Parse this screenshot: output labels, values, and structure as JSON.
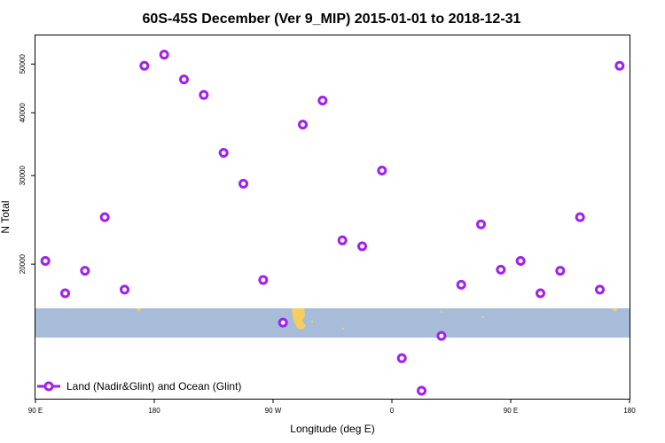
{
  "chart_data": {
    "type": "scatter",
    "title": "60S-45S December (Ver 9_MIP)   2015-01-01 to 2018-12-31",
    "xlabel": "Longitude (deg E)",
    "ylabel": "N Total",
    "x_ticks": [
      {
        "value": 90,
        "label": "90 E"
      },
      {
        "value": 180,
        "label": "180"
      },
      {
        "value": 270,
        "label": "90 W"
      },
      {
        "value": 360,
        "label": "0"
      },
      {
        "value": 450,
        "label": "90 E"
      },
      {
        "value": 540,
        "label": "180"
      }
    ],
    "y_ticks": [
      20000,
      30000,
      40000,
      50000
    ],
    "xlim": [
      90,
      540
    ],
    "y_scale": "log",
    "ylim": [
      10800,
      57000
    ],
    "legend": {
      "position": "bottom-left",
      "label": "Land (Nadir&Glint) and Ocean (Glint)"
    },
    "series": [
      {
        "name": "Land (Nadir&Glint) and Ocean (Glint)",
        "color": "#a020f0",
        "x": [
          97.5,
          112.5,
          127.5,
          142.5,
          157.5,
          172.5,
          187.5,
          202.5,
          217.5,
          232.5,
          247.5,
          262.5,
          277.5,
          292.5,
          307.5,
          322.5,
          337.5,
          352.5,
          367.5,
          382.5,
          397.5,
          412.5,
          427.5,
          442.5,
          457.5,
          472.5,
          487.5,
          502.5,
          517.5,
          532.5
        ],
        "y": [
          20300,
          17500,
          19400,
          24800,
          17800,
          49600,
          52200,
          46600,
          43400,
          33300,
          28900,
          18600,
          15300,
          37900,
          42300,
          22300,
          21700,
          30700,
          13000,
          11200,
          14400,
          18200,
          24000,
          19500,
          20300,
          17500,
          19400,
          24800,
          17800,
          49600
        ]
      }
    ],
    "band": {
      "type": "ocean-land-map-strip",
      "ocean_color": "#a7bcd9",
      "land_color": "#f7ce5e"
    },
    "colors": {
      "marker": "#a020f0",
      "plot_border": "#000000"
    }
  }
}
